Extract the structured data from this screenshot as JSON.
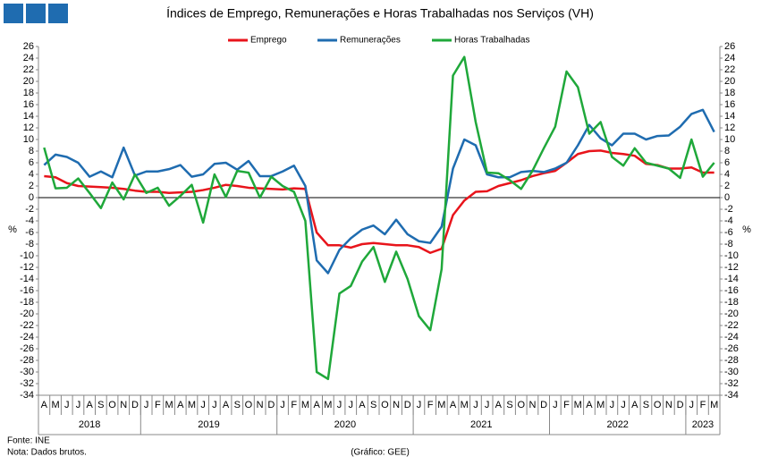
{
  "chart_data": {
    "type": "line",
    "title": "Índices de Emprego, Remunerações e Horas Trabalhadas nos Serviços (VH)",
    "y_label": "%",
    "y2_label": "%",
    "categories": [
      "A",
      "M",
      "J",
      "J",
      "A",
      "S",
      "O",
      "N",
      "D",
      "J",
      "F",
      "M",
      "A",
      "M",
      "J",
      "J",
      "A",
      "S",
      "O",
      "N",
      "D",
      "J",
      "F",
      "M",
      "A",
      "M",
      "J",
      "J",
      "A",
      "S",
      "O",
      "N",
      "D",
      "J",
      "F",
      "M",
      "A",
      "M",
      "J",
      "J",
      "A",
      "S",
      "O",
      "N",
      "D",
      "J",
      "F",
      "M",
      "A",
      "M",
      "J",
      "J",
      "A",
      "S",
      "O",
      "N",
      "D",
      "J",
      "F",
      "M"
    ],
    "year_groups": [
      {
        "label": "2018",
        "count": 9
      },
      {
        "label": "2019",
        "count": 12
      },
      {
        "label": "2020",
        "count": 12
      },
      {
        "label": "2021",
        "count": 12
      },
      {
        "label": "2022",
        "count": 12
      },
      {
        "label": "2023",
        "count": 3
      }
    ],
    "series": [
      {
        "name": "Emprego",
        "color": "#e8141b",
        "values": [
          3.7,
          3.5,
          2.5,
          2.0,
          1.9,
          1.8,
          1.7,
          1.5,
          1.2,
          1.0,
          1.0,
          0.8,
          0.9,
          1.0,
          1.3,
          1.7,
          2.2,
          2.0,
          1.7,
          1.6,
          1.5,
          1.4,
          1.6,
          1.5,
          -6,
          -8.2,
          -8.2,
          -8.6,
          -8.0,
          -7.8,
          -8.0,
          -8.2,
          -8.2,
          -8.5,
          -9.5,
          -8.8,
          -3.0,
          -0.5,
          1.0,
          1.1,
          2.0,
          2.5,
          3.0,
          3.7,
          4.2,
          4.6,
          6.0,
          7.5,
          8.0,
          8.1,
          7.7,
          7.5,
          7.2,
          5.8,
          5.6,
          5.0,
          5.0,
          5.2,
          4.3,
          4.3
        ]
      },
      {
        "name": "Remunerações",
        "color": "#1f6cb0",
        "values": [
          5.6,
          7.4,
          7.0,
          6.0,
          3.6,
          4.5,
          3.5,
          8.6,
          3.8,
          4.5,
          4.5,
          4.9,
          5.6,
          3.6,
          4.0,
          5.8,
          6.0,
          4.8,
          6.3,
          3.7,
          3.7,
          4.5,
          5.5,
          2.0,
          -10.8,
          -13,
          -9,
          -7,
          -5.5,
          -4.8,
          -6.3,
          -3.8,
          -6.3,
          -7.5,
          -7.8,
          -5,
          5,
          10,
          9,
          4,
          3.5,
          3.5,
          4.4,
          4.6,
          4.4,
          5,
          6,
          9,
          12.5,
          10.2,
          9,
          11,
          11,
          10,
          10.6,
          10.7,
          12.2,
          14.4,
          15.1,
          11.3
        ]
      },
      {
        "name": "Horas Trabalhadas",
        "color": "#1fa83a",
        "values": [
          8.6,
          1.6,
          1.7,
          3.3,
          0.8,
          -1.8,
          2.6,
          -0.3,
          4.0,
          0.8,
          1.7,
          -1.4,
          0.3,
          2.2,
          -4.3,
          4.0,
          0.1,
          4.6,
          4.3,
          0,
          3.6,
          2.0,
          1.0,
          -4.0,
          -30,
          -31.2,
          -16.5,
          -15.2,
          -11,
          -8.5,
          -14.5,
          -9.3,
          -14,
          -20.4,
          -22.8,
          -12.3,
          21,
          24.2,
          13,
          4.3,
          4.2,
          3,
          1.5,
          4.6,
          8.5,
          12.2,
          21.7,
          19,
          11,
          13,
          7,
          5.5,
          8.5,
          6,
          5.5,
          5,
          3.4,
          10,
          3.6,
          6.0
        ]
      }
    ],
    "ylim": [
      -34,
      26
    ],
    "yticks": [
      -34,
      -32,
      -30,
      -28,
      -26,
      -24,
      -22,
      -20,
      -18,
      -16,
      -14,
      -12,
      -10,
      -8,
      -6,
      -4,
      -2,
      0,
      2,
      4,
      6,
      8,
      10,
      12,
      14,
      16,
      18,
      20,
      22,
      24,
      26
    ],
    "y2lim": [
      -34,
      26
    ],
    "y2ticks": [
      -34,
      -32,
      -30,
      -28,
      -26,
      -24,
      -22,
      -20,
      -18,
      -16,
      -14,
      -12,
      -10,
      -8,
      -6,
      -4,
      -2,
      0,
      2,
      4,
      6,
      8,
      10,
      12,
      14,
      16,
      18,
      20,
      22,
      24,
      26
    ],
    "source": "Fonte: INE",
    "note": "Nota: Dados brutos.",
    "credit": "(Gráfico: GEE)"
  }
}
